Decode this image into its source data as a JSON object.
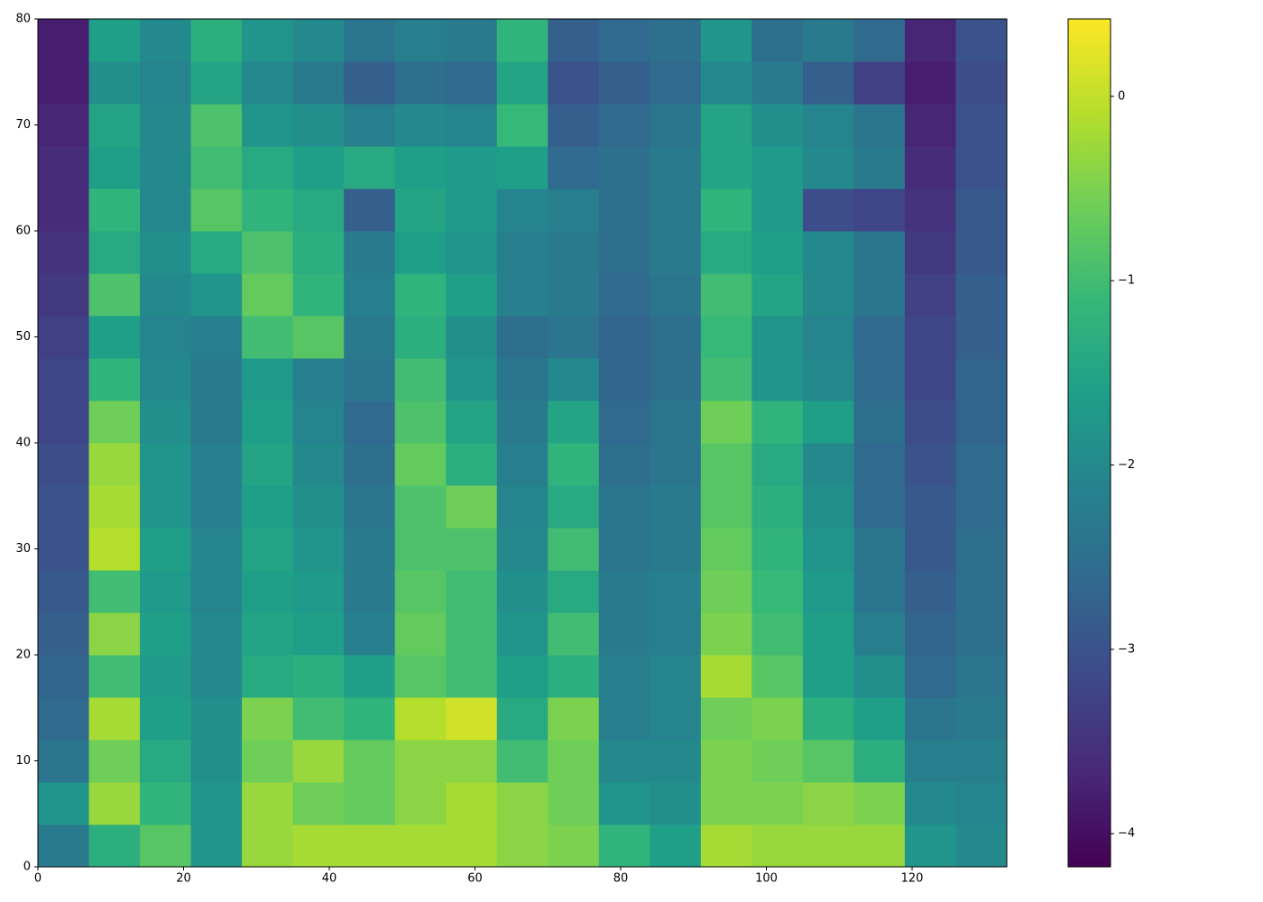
{
  "chart_data": {
    "type": "heatmap",
    "colormap": "viridis",
    "xbins": [
      0,
      7,
      14,
      21,
      28,
      35,
      42,
      49,
      56,
      63,
      70,
      77,
      84,
      91,
      98,
      105,
      112,
      119,
      126,
      133
    ],
    "ybins": [
      0,
      4,
      8,
      12,
      16,
      20,
      24,
      28,
      32,
      36,
      40,
      44,
      48,
      52,
      56,
      60,
      64,
      68,
      72,
      76,
      80
    ],
    "values": [
      [
        -2.3,
        -1.3,
        -0.8,
        -1.8,
        -0.3,
        -0.2,
        -0.2,
        -0.2,
        -0.2,
        -0.4,
        -0.5,
        -1.2,
        -1.6,
        -0.2,
        -0.3,
        -0.3,
        -0.3,
        -1.8,
        -2.0
      ],
      [
        -1.8,
        -0.3,
        -1.2,
        -1.8,
        -0.3,
        -0.6,
        -0.7,
        -0.4,
        -0.2,
        -0.4,
        -0.6,
        -1.8,
        -1.9,
        -0.5,
        -0.5,
        -0.4,
        -0.5,
        -2.0,
        -2.1
      ],
      [
        -2.4,
        -0.6,
        -1.4,
        -1.9,
        -0.6,
        -0.3,
        -0.7,
        -0.4,
        -0.4,
        -1.0,
        -0.6,
        -2.0,
        -2.0,
        -0.5,
        -0.6,
        -0.8,
        -1.3,
        -2.2,
        -2.2
      ],
      [
        -2.6,
        -0.2,
        -1.6,
        -1.9,
        -0.5,
        -1.0,
        -1.2,
        -0.1,
        0.1,
        -1.4,
        -0.5,
        -2.2,
        -2.1,
        -0.6,
        -0.5,
        -1.3,
        -1.6,
        -2.4,
        -2.3
      ],
      [
        -2.7,
        -1.0,
        -1.7,
        -2.0,
        -1.4,
        -1.3,
        -1.6,
        -0.8,
        -1.0,
        -1.6,
        -1.3,
        -2.2,
        -2.1,
        -0.2,
        -0.8,
        -1.6,
        -1.9,
        -2.6,
        -2.4
      ],
      [
        -2.8,
        -0.4,
        -1.6,
        -2.0,
        -1.5,
        -1.6,
        -2.2,
        -0.7,
        -1.0,
        -1.8,
        -1.0,
        -2.3,
        -2.2,
        -0.5,
        -1.0,
        -1.6,
        -2.2,
        -2.7,
        -2.5
      ],
      [
        -2.9,
        -1.0,
        -1.7,
        -2.1,
        -1.6,
        -1.7,
        -2.3,
        -0.8,
        -1.0,
        -1.9,
        -1.4,
        -2.3,
        -2.2,
        -0.6,
        -1.1,
        -1.7,
        -2.4,
        -2.8,
        -2.5
      ],
      [
        -3.0,
        -0.1,
        -1.6,
        -2.1,
        -1.5,
        -1.8,
        -2.3,
        -0.9,
        -0.9,
        -2.0,
        -1.0,
        -2.4,
        -2.3,
        -0.7,
        -1.2,
        -1.8,
        -2.4,
        -2.9,
        -2.5
      ],
      [
        -3.0,
        -0.2,
        -1.8,
        -2.2,
        -1.6,
        -1.9,
        -2.4,
        -0.9,
        -0.6,
        -2.1,
        -1.4,
        -2.4,
        -2.3,
        -0.8,
        -1.3,
        -1.9,
        -2.6,
        -2.9,
        -2.6
      ],
      [
        -3.1,
        -0.3,
        -1.8,
        -2.2,
        -1.5,
        -2.0,
        -2.5,
        -0.7,
        -1.3,
        -2.2,
        -1.2,
        -2.5,
        -2.4,
        -0.8,
        -1.4,
        -2.0,
        -2.6,
        -3.0,
        -2.6
      ],
      [
        -3.2,
        -0.6,
        -1.9,
        -2.3,
        -1.6,
        -2.1,
        -2.6,
        -0.9,
        -1.5,
        -2.3,
        -1.5,
        -2.6,
        -2.4,
        -0.6,
        -1.2,
        -1.6,
        -2.5,
        -3.1,
        -2.7
      ],
      [
        -3.2,
        -1.2,
        -2.0,
        -2.3,
        -1.7,
        -2.2,
        -2.4,
        -1.0,
        -1.8,
        -2.4,
        -2.0,
        -2.7,
        -2.5,
        -1.0,
        -1.8,
        -2.0,
        -2.6,
        -3.2,
        -2.7
      ],
      [
        -3.3,
        -1.6,
        -2.1,
        -2.2,
        -1.0,
        -0.8,
        -2.3,
        -1.3,
        -1.9,
        -2.5,
        -2.4,
        -2.7,
        -2.5,
        -1.1,
        -1.8,
        -2.1,
        -2.6,
        -3.2,
        -2.8
      ],
      [
        -3.4,
        -0.9,
        -2.0,
        -1.8,
        -0.7,
        -1.2,
        -2.2,
        -1.2,
        -1.6,
        -2.2,
        -2.3,
        -2.6,
        -2.4,
        -1.0,
        -1.5,
        -2.0,
        -2.4,
        -3.3,
        -2.8
      ],
      [
        -3.5,
        -1.4,
        -1.9,
        -1.4,
        -0.9,
        -1.3,
        -2.3,
        -1.6,
        -1.8,
        -2.2,
        -2.3,
        -2.5,
        -2.3,
        -1.4,
        -1.6,
        -2.0,
        -2.4,
        -3.4,
        -2.9
      ],
      [
        -3.6,
        -1.2,
        -2.0,
        -0.8,
        -1.2,
        -1.4,
        -2.8,
        -1.5,
        -1.7,
        -2.1,
        -2.2,
        -2.5,
        -2.3,
        -1.2,
        -1.7,
        -3.1,
        -3.2,
        -3.5,
        -2.9
      ],
      [
        -3.6,
        -1.6,
        -2.0,
        -1.0,
        -1.4,
        -1.6,
        -1.4,
        -1.6,
        -1.7,
        -1.6,
        -2.6,
        -2.5,
        -2.3,
        -1.5,
        -1.7,
        -2.0,
        -2.3,
        -3.6,
        -3.0
      ],
      [
        -3.7,
        -1.5,
        -2.0,
        -0.9,
        -1.8,
        -1.9,
        -2.2,
        -2.0,
        -2.1,
        -1.1,
        -2.8,
        -2.6,
        -2.4,
        -1.5,
        -1.9,
        -2.1,
        -2.4,
        -3.7,
        -3.0
      ],
      [
        -3.8,
        -1.9,
        -2.1,
        -1.5,
        -2.0,
        -2.3,
        -2.8,
        -2.5,
        -2.6,
        -1.5,
        -3.0,
        -2.8,
        -2.6,
        -2.0,
        -2.3,
        -2.8,
        -3.3,
        -3.8,
        -3.1
      ],
      [
        -3.8,
        -1.6,
        -2.0,
        -1.3,
        -1.8,
        -2.0,
        -2.4,
        -2.2,
        -2.3,
        -1.2,
        -2.8,
        -2.6,
        -2.5,
        -1.8,
        -2.5,
        -2.3,
        -2.6,
        -3.7,
        -3.0
      ]
    ],
    "xlim": [
      0,
      133
    ],
    "ylim": [
      0,
      80
    ],
    "xticks": [
      0,
      20,
      40,
      60,
      80,
      100,
      120
    ],
    "yticks": [
      0,
      10,
      20,
      30,
      40,
      50,
      60,
      70,
      80
    ],
    "colorbar": {
      "lim": [
        -4.18,
        0.42
      ],
      "ticks": [
        {
          "value": -4,
          "label": "−4"
        },
        {
          "value": -3,
          "label": "−3"
        },
        {
          "value": -2,
          "label": "−2"
        },
        {
          "value": -1,
          "label": "−1"
        },
        0
      ]
    }
  }
}
